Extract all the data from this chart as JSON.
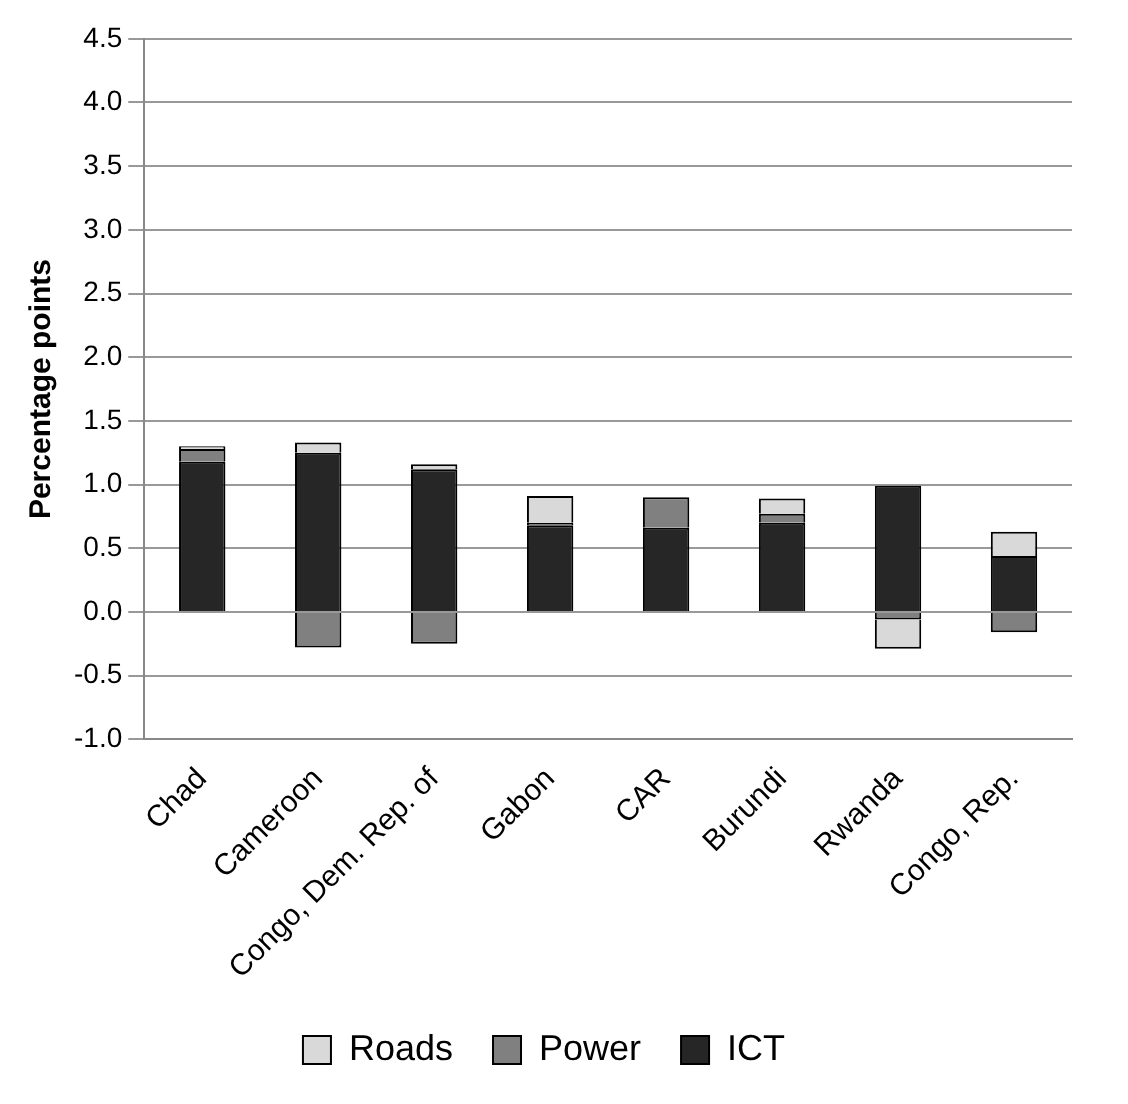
{
  "chart_data": {
    "type": "bar",
    "stacked": true,
    "ylabel": "Percentage points",
    "categories": [
      "Chad",
      "Cameroon",
      "Congo, Dem. Rep. of",
      "Gabon",
      "CAR",
      "Burundi",
      "Rwanda",
      "Congo, Rep."
    ],
    "series": [
      {
        "name": "ICT",
        "color": "#262626",
        "values": [
          1.18,
          1.25,
          1.12,
          0.68,
          0.66,
          0.7,
          0.99,
          0.44
        ]
      },
      {
        "name": "Power",
        "color": "#808080",
        "values": [
          0.1,
          -0.28,
          -0.25,
          0.02,
          0.24,
          0.07,
          -0.06,
          -0.16
        ]
      },
      {
        "name": "Roads",
        "color": "#d9d9d9",
        "values": [
          0.02,
          0.08,
          0.04,
          0.21,
          0,
          0.12,
          -0.23,
          0.19
        ]
      }
    ],
    "ylim": [
      -1.0,
      4.5
    ],
    "yticks": [
      {
        "value": -1,
        "label": "-1.0"
      },
      {
        "value": -0.5,
        "label": "-0.5"
      },
      {
        "value": 0,
        "label": "0.0"
      },
      {
        "value": 0.5,
        "label": "0.5"
      },
      {
        "value": 1,
        "label": "1.0"
      },
      {
        "value": 1.5,
        "label": "1.5"
      },
      {
        "value": 2,
        "label": "2.0"
      },
      {
        "value": 2.5,
        "label": "2.5"
      },
      {
        "value": 3,
        "label": "3.0"
      },
      {
        "value": 3.5,
        "label": "3.5"
      },
      {
        "value": 4,
        "label": "4.0"
      },
      {
        "value": 4.5,
        "label": "4.5"
      }
    ],
    "grid": "y",
    "legend": "bottom"
  }
}
